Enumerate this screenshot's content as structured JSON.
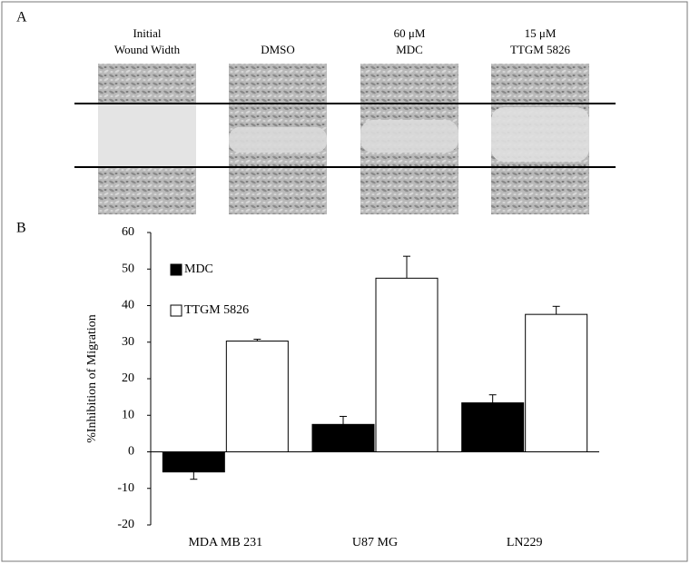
{
  "panel_a": {
    "label": "A",
    "images": [
      {
        "label": [
          "Initial",
          "Wound Width"
        ]
      },
      {
        "label": [
          "DMSO"
        ]
      },
      {
        "label": [
          "60 μM",
          "MDC"
        ]
      },
      {
        "label": [
          "15 μM",
          "TTGM 5826"
        ]
      }
    ]
  },
  "chart_data": {
    "type": "bar",
    "panel_label": "B",
    "categories": [
      "MDA MB 231",
      "U87 MG",
      "LN229"
    ],
    "series": [
      {
        "name": "MDC",
        "color": "#000000",
        "values": [
          -5.5,
          7.5,
          13.4
        ],
        "errors": [
          2,
          2.2,
          2.2
        ]
      },
      {
        "name": "TTGM 5826",
        "color": "#ffffff",
        "values": [
          30.3,
          47.5,
          37.6
        ],
        "errors": [
          0.5,
          6,
          2.2
        ]
      }
    ],
    "y_label": "%Inhibition of Migration",
    "ylim": [
      -20,
      60
    ],
    "yticks": [
      -20,
      -10,
      0,
      10,
      20,
      30,
      40,
      50,
      60
    ]
  }
}
